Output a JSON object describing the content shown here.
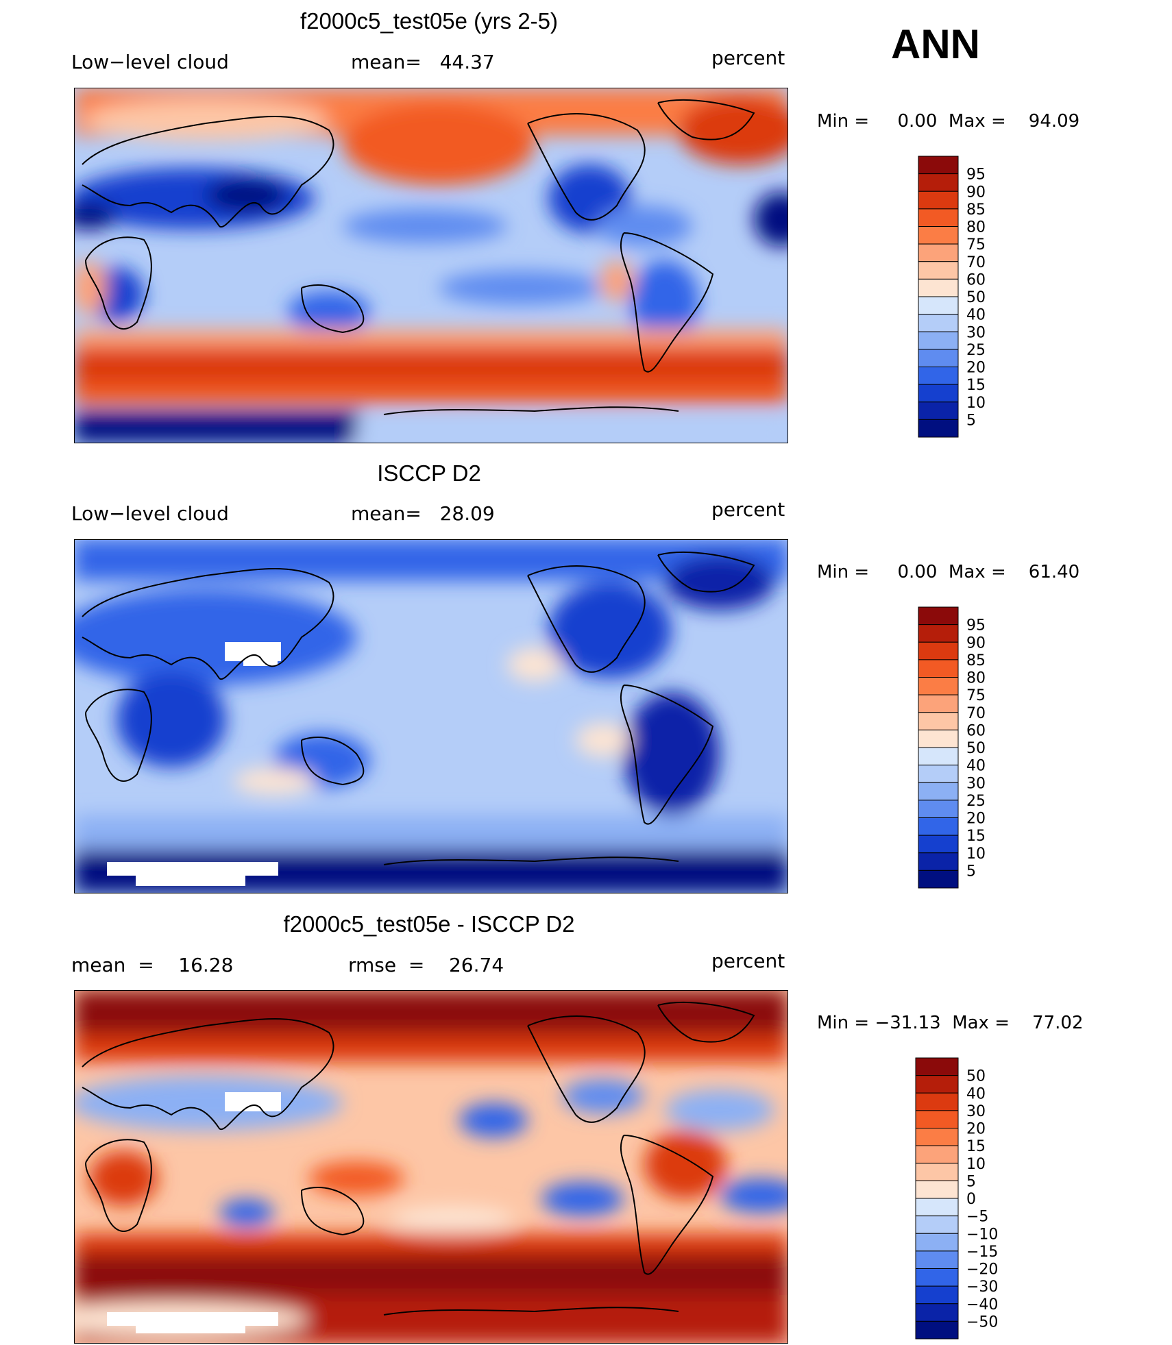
{
  "season": "ANN",
  "units": "percent",
  "panels": [
    {
      "title": "f2000c5_test05e (yrs 2-5)",
      "left_label": "Low−level cloud",
      "mid_label": "mean=   44.37",
      "right_label": "percent",
      "minmax": "Min =     0.00  Max =    94.09"
    },
    {
      "title": "ISCCP D2",
      "left_label": "Low−level cloud",
      "mid_label": "mean=   28.09",
      "right_label": "percent",
      "minmax": "Min =     0.00  Max =    61.40"
    },
    {
      "title": "f2000c5_test05e - ISCCP D2",
      "left_label": "mean  =    16.28",
      "mid_label": "rmse  =    26.74",
      "right_label": "percent",
      "minmax": "Min = −31.13  Max =    77.02"
    }
  ],
  "chart_data": [
    {
      "type": "heatmap",
      "title": "f2000c5_test05e (yrs 2-5)",
      "variable": "Low-level cloud",
      "units": "percent",
      "mean": 44.37,
      "min": 0.0,
      "max": 94.09,
      "colorbar_levels": [
        "95",
        "90",
        "85",
        "80",
        "75",
        "70",
        "60",
        "50",
        "40",
        "30",
        "25",
        "20",
        "15",
        "10",
        "5"
      ],
      "colors": [
        "#8b0a0a",
        "#b51e0a",
        "#dc3a10",
        "#f25a24",
        "#fb7d45",
        "#fca37a",
        "#fdc6a6",
        "#fde4d2",
        "#d6e6fb",
        "#b4cdf8",
        "#8cb0f4",
        "#5f8cf0",
        "#3165e8",
        "#1540cf",
        "#0a23a8",
        "#000f80"
      ]
    },
    {
      "type": "heatmap",
      "title": "ISCCP D2",
      "variable": "Low-level cloud",
      "units": "percent",
      "mean": 28.09,
      "min": 0.0,
      "max": 61.4,
      "colorbar_levels": [
        "95",
        "90",
        "85",
        "80",
        "75",
        "70",
        "60",
        "50",
        "40",
        "30",
        "25",
        "20",
        "15",
        "10",
        "5"
      ],
      "colors": [
        "#8b0a0a",
        "#b51e0a",
        "#dc3a10",
        "#f25a24",
        "#fb7d45",
        "#fca37a",
        "#fdc6a6",
        "#fde4d2",
        "#d6e6fb",
        "#b4cdf8",
        "#8cb0f4",
        "#5f8cf0",
        "#3165e8",
        "#1540cf",
        "#0a23a8",
        "#000f80"
      ]
    },
    {
      "type": "heatmap",
      "title": "f2000c5_test05e - ISCCP D2",
      "units": "percent",
      "mean": 16.28,
      "rmse": 26.74,
      "min": -31.13,
      "max": 77.02,
      "colorbar_levels": [
        "50",
        "40",
        "30",
        "20",
        "15",
        "10",
        "5",
        "0",
        "−5",
        "−10",
        "−15",
        "−20",
        "−30",
        "−40",
        "−50"
      ],
      "colors": [
        "#8b0a0a",
        "#b51e0a",
        "#dc3a10",
        "#f25a24",
        "#fb7d45",
        "#fca37a",
        "#fdc6a6",
        "#fde4d2",
        "#d6e6fb",
        "#b4cdf8",
        "#8cb0f4",
        "#5f8cf0",
        "#3165e8",
        "#1540cf",
        "#0a23a8",
        "#000f80"
      ]
    }
  ]
}
